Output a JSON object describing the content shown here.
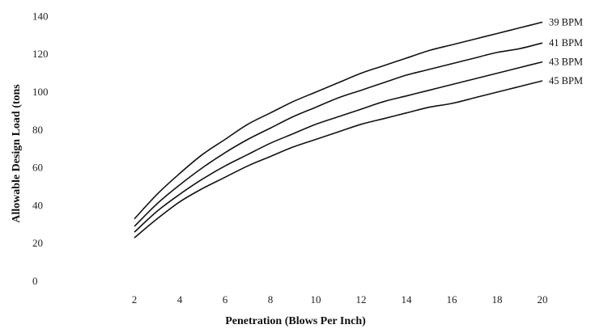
{
  "chart_data": {
    "type": "line",
    "xlabel": "Penetration (Blows Per Inch)",
    "ylabel": "Allowable Design Load (tons",
    "xlim": [
      0,
      20
    ],
    "ylim": [
      0,
      140
    ],
    "x_ticks": [
      "2",
      "4",
      "6",
      "8",
      "10",
      "12",
      "14",
      "16",
      "18",
      "20"
    ],
    "y_ticks": [
      "0",
      "20",
      "40",
      "60",
      "80",
      "100",
      "120",
      "140"
    ],
    "x": [
      2,
      3,
      4,
      5,
      6,
      7,
      8,
      9,
      10,
      11,
      12,
      13,
      14,
      15,
      16,
      17,
      18,
      19,
      20
    ],
    "series": [
      {
        "name": "39 BPM",
        "values": [
          33,
          46,
          57,
          67,
          75,
          83,
          89,
          95,
          100,
          105,
          110,
          114,
          118,
          122,
          125,
          128,
          131,
          134,
          137
        ]
      },
      {
        "name": "41 BPM",
        "values": [
          29,
          41,
          51,
          60,
          68,
          75,
          81,
          87,
          92,
          97,
          101,
          105,
          109,
          112,
          115,
          118,
          121,
          123,
          126
        ]
      },
      {
        "name": "43 BPM",
        "values": [
          26,
          37,
          46,
          54,
          61,
          67,
          73,
          78,
          83,
          87,
          91,
          95,
          98,
          101,
          104,
          107,
          110,
          113,
          116
        ]
      },
      {
        "name": "45 BPM",
        "values": [
          23,
          33,
          42,
          49,
          55,
          61,
          66,
          71,
          75,
          79,
          83,
          86,
          89,
          92,
          94,
          97,
          100,
          103,
          106
        ]
      }
    ]
  }
}
